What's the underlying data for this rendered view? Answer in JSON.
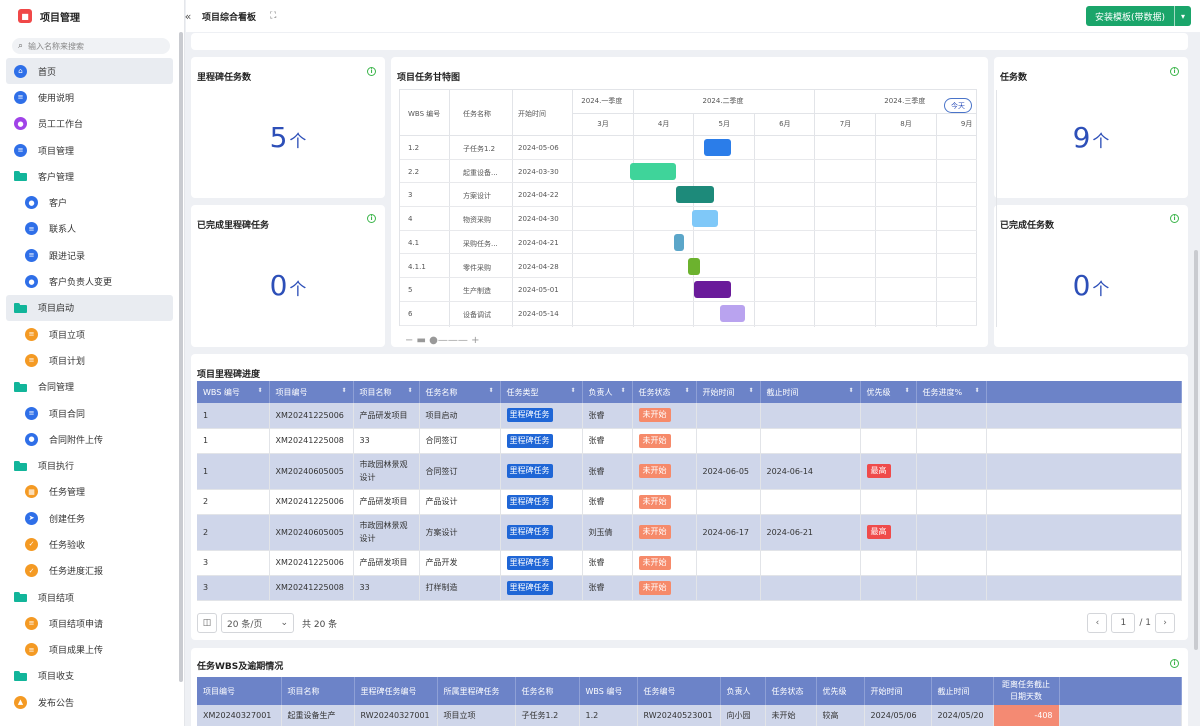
{
  "app": {
    "title": "项目管理",
    "logo_glyph": "■"
  },
  "search": {
    "placeholder": "输入名称来搜索"
  },
  "menu": [
    {
      "label": "首页",
      "level": "top",
      "icon": "home-icon",
      "kind": "circle",
      "color": "blue",
      "glyph": "⌂",
      "active": true
    },
    {
      "label": "使用说明",
      "level": "top",
      "icon": "document-icon",
      "kind": "circle",
      "color": "blue",
      "glyph": "≡"
    },
    {
      "label": "员工工作台",
      "level": "top",
      "icon": "person-icon",
      "kind": "circle",
      "color": "purple",
      "glyph": "●"
    },
    {
      "label": "项目管理",
      "level": "top",
      "icon": "list-icon",
      "kind": "circle",
      "color": "blue",
      "glyph": "≡"
    },
    {
      "label": "客户管理",
      "level": "top",
      "icon": "folder-icon",
      "kind": "folder"
    },
    {
      "label": "客户",
      "level": "sub",
      "icon": "user-icon",
      "kind": "circle",
      "color": "blue",
      "glyph": "●"
    },
    {
      "label": "联系人",
      "level": "sub",
      "icon": "contact-icon",
      "kind": "circle",
      "color": "blue",
      "glyph": "≡"
    },
    {
      "label": "跟进记录",
      "level": "sub",
      "icon": "record-icon",
      "kind": "circle",
      "color": "blue",
      "glyph": "≡"
    },
    {
      "label": "客户负责人变更",
      "level": "sub",
      "icon": "transfer-icon",
      "kind": "circle",
      "color": "blue",
      "glyph": "●"
    },
    {
      "label": "项目启动",
      "level": "top",
      "icon": "folder-icon",
      "kind": "folder",
      "active": true
    },
    {
      "label": "项目立项",
      "level": "sub",
      "icon": "approval-icon",
      "kind": "circle",
      "color": "orange",
      "glyph": "≡"
    },
    {
      "label": "项目计划",
      "level": "sub",
      "icon": "plan-icon",
      "kind": "circle",
      "color": "orange",
      "glyph": "≡"
    },
    {
      "label": "合同管理",
      "level": "top",
      "icon": "folder-icon",
      "kind": "folder"
    },
    {
      "label": "项目合同",
      "level": "sub",
      "icon": "contract-icon",
      "kind": "circle",
      "color": "blue",
      "glyph": "≡"
    },
    {
      "label": "合同附件上传",
      "level": "sub",
      "icon": "upload-icon",
      "kind": "circle",
      "color": "blue",
      "glyph": "●"
    },
    {
      "label": "项目执行",
      "level": "top",
      "icon": "folder-icon",
      "kind": "folder"
    },
    {
      "label": "任务管理",
      "level": "sub",
      "icon": "task-icon",
      "kind": "circle",
      "color": "orange",
      "glyph": "▦"
    },
    {
      "label": "创建任务",
      "level": "sub",
      "icon": "send-icon",
      "kind": "circle",
      "color": "blue",
      "glyph": "➤"
    },
    {
      "label": "任务验收",
      "level": "sub",
      "icon": "shield-icon",
      "kind": "circle",
      "color": "orange",
      "glyph": "✓"
    },
    {
      "label": "任务进度汇报",
      "level": "sub",
      "icon": "shield-icon",
      "kind": "circle",
      "color": "orange",
      "glyph": "✓"
    },
    {
      "label": "项目结项",
      "level": "top",
      "icon": "folder-icon",
      "kind": "folder"
    },
    {
      "label": "项目结项申请",
      "level": "sub",
      "icon": "apply-icon",
      "kind": "circle",
      "color": "orange",
      "glyph": "≡"
    },
    {
      "label": "项目成果上传",
      "level": "sub",
      "icon": "result-icon",
      "kind": "circle",
      "color": "orange",
      "glyph": "≡"
    },
    {
      "label": "项目收支",
      "level": "top",
      "icon": "folder-icon",
      "kind": "folder"
    },
    {
      "label": "发布公告",
      "level": "top",
      "icon": "announce-icon",
      "kind": "circle",
      "color": "orange",
      "glyph": "▲"
    }
  ],
  "topbar": {
    "collapse_glyph": "«",
    "breadcrumb": "项目综合看板",
    "expand_glyph": "⛶",
    "install_label": "安装模板(带数据)",
    "install_dd": "▾"
  },
  "cards": {
    "milestone": {
      "title": "里程碑任务数",
      "value": "5",
      "unit": "个"
    },
    "milestone_done": {
      "title": "已完成里程碑任务",
      "value": "0",
      "unit": "个"
    },
    "tasks": {
      "title": "任务数",
      "value": "9",
      "unit": "个"
    },
    "tasks_done": {
      "title": "已完成任务数",
      "value": "0",
      "unit": "个"
    },
    "info_glyph": "i"
  },
  "gantt": {
    "title": "项目任务甘特图",
    "headers": {
      "wbs": "WBS 编号",
      "name": "任务名称",
      "start": "开始时间"
    },
    "quarters": [
      "2024.一季度",
      "2024.二季度",
      "2024.三季度"
    ],
    "months": [
      "3月",
      "4月",
      "5月",
      "6月",
      "7月",
      "8月",
      "9月"
    ],
    "today": "今天",
    "zoom": "− ▬ ●——— +",
    "rows": [
      {
        "wbs": "1.2",
        "name": "子任务1.2",
        "start": "2024-05-06",
        "bar_start": "2024-05-06",
        "bar_end": "2024-05-20",
        "color": "#2b7de9"
      },
      {
        "wbs": "2.2",
        "name": "起重设备...",
        "start": "2024-03-30",
        "bar_start": "2024-03-30",
        "bar_end": "2024-04-22",
        "color": "#3fd49a"
      },
      {
        "wbs": "3",
        "name": "方案设计",
        "start": "2024-04-22",
        "bar_start": "2024-04-22",
        "bar_end": "2024-05-11",
        "color": "#1d8a7a"
      },
      {
        "wbs": "4",
        "name": "物资采购",
        "start": "2024-04-30",
        "bar_start": "2024-04-30",
        "bar_end": "2024-05-13",
        "color": "#7fc8f8"
      },
      {
        "wbs": "4.1",
        "name": "采购任务...",
        "start": "2024-04-21",
        "bar_start": "2024-04-21",
        "bar_end": "2024-04-26",
        "color": "#5ba6c9"
      },
      {
        "wbs": "4.1.1",
        "name": "零件采购",
        "start": "2024-04-28",
        "bar_start": "2024-04-28",
        "bar_end": "2024-05-04",
        "color": "#6cb22e"
      },
      {
        "wbs": "5",
        "name": "生产制造",
        "start": "2024-05-01",
        "bar_start": "2024-05-01",
        "bar_end": "2024-05-20",
        "color": "#6a1b9a"
      },
      {
        "wbs": "6",
        "name": "设备调试",
        "start": "2024-05-14",
        "bar_start": "2024-05-14",
        "bar_end": "2024-05-27",
        "color": "#b9a3ef"
      }
    ]
  },
  "milestones": {
    "title": "项目里程碑进度",
    "headers": [
      "WBS 编号",
      "项目编号",
      "项目名称",
      "任务名称",
      "任务类型",
      "负责人",
      "任务状态",
      "开始时间",
      "截止时间",
      "优先级",
      "任务进度%"
    ],
    "sort_glyph": "⬍",
    "rows": [
      {
        "wbs": "1",
        "proj": "XM20241225006",
        "pname": "产品研发项目",
        "task": "项目启动",
        "type": "里程碑任务",
        "owner": "张睿",
        "status": "未开始",
        "start": "",
        "end": "",
        "prio": ""
      },
      {
        "wbs": "1",
        "proj": "XM20241225008",
        "pname": "33",
        "task": "合同签订",
        "type": "里程碑任务",
        "owner": "张睿",
        "status": "未开始",
        "start": "",
        "end": "",
        "prio": ""
      },
      {
        "wbs": "1",
        "proj": "XM20240605005",
        "pname": "市政园林景观设计",
        "task": "合同签订",
        "type": "里程碑任务",
        "owner": "张睿",
        "status": "未开始",
        "start": "2024-06-05",
        "end": "2024-06-14",
        "prio": "最高"
      },
      {
        "wbs": "2",
        "proj": "XM20241225006",
        "pname": "产品研发项目",
        "task": "产品设计",
        "type": "里程碑任务",
        "owner": "张睿",
        "status": "未开始",
        "start": "",
        "end": "",
        "prio": ""
      },
      {
        "wbs": "2",
        "proj": "XM20240605005",
        "pname": "市政园林景观设计",
        "task": "方案设计",
        "type": "里程碑任务",
        "owner": "刘玉倩",
        "status": "未开始",
        "start": "2024-06-17",
        "end": "2024-06-21",
        "prio": "最高"
      },
      {
        "wbs": "3",
        "proj": "XM20241225006",
        "pname": "产品研发项目",
        "task": "产品开发",
        "type": "里程碑任务",
        "owner": "张睿",
        "status": "未开始",
        "start": "",
        "end": "",
        "prio": ""
      },
      {
        "wbs": "3",
        "proj": "XM20241225008",
        "pname": "33",
        "task": "打样制造",
        "type": "里程碑任务",
        "owner": "张睿",
        "status": "未开始",
        "start": "",
        "end": "",
        "prio": ""
      }
    ],
    "pager": {
      "columns_glyph": "◫",
      "page_size": "20 条/页",
      "size_glyph": "⌄",
      "total": "共 20 条",
      "prev": "‹",
      "page": "1",
      "of": "/ 1",
      "next": "›"
    }
  },
  "wbs": {
    "title": "任务WBS及逾期情况",
    "headers": [
      "项目编号",
      "项目名称",
      "里程碑任务编号",
      "所属里程碑任务",
      "任务名称",
      "WBS 编号",
      "任务编号",
      "负责人",
      "任务状态",
      "优先级",
      "开始时间",
      "截止时间",
      "距离任务截止日期天数"
    ],
    "rows": [
      {
        "proj": "XM20240327001",
        "pname": "起重设备生产",
        "mcode": "RW20240327001",
        "mtask": "项目立项",
        "task": "子任务1.2",
        "wbs": "1.2",
        "tcode": "RW20240523001",
        "owner": "向小园",
        "status": "未开始",
        "prio": "较高",
        "start": "2024/05/06",
        "end": "2024/05/20",
        "days": "-408"
      }
    ]
  }
}
